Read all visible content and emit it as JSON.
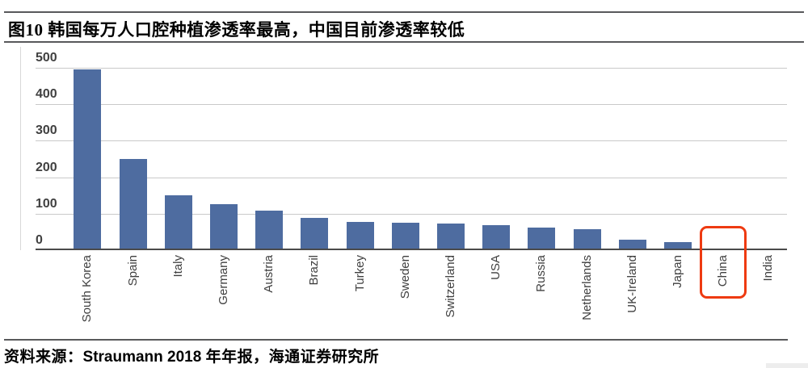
{
  "figure": {
    "title": "图10 韩国每万人口腔种植渗透率最高，中国目前渗透率较低",
    "source_prefix": "资料来源：",
    "source_latin": "Straumann 2018",
    "source_suffix": " 年年报，海通证券研究所"
  },
  "chart_data": {
    "type": "bar",
    "title": "图10 韩国每万人口腔种植渗透率最高，中国目前渗透率较低",
    "categories": [
      "South Korea",
      "Spain",
      "Italy",
      "Germany",
      "Austria",
      "Brazil",
      "Turkey",
      "Sweden",
      "Switzerland",
      "USA",
      "Russia",
      "Netherlands",
      "UK-Ireland",
      "Japan",
      "China",
      "India"
    ],
    "values": [
      495,
      250,
      150,
      125,
      108,
      88,
      78,
      76,
      72,
      69,
      63,
      57,
      29,
      23,
      5,
      2
    ],
    "xlabel": "",
    "ylabel": "",
    "ylim": [
      0,
      500
    ],
    "yticks": [
      0,
      100,
      200,
      300,
      400,
      500
    ],
    "grid": "horizontal",
    "legend": "none",
    "bar_color": "#4e6ca0",
    "grid_color": "#c9c9c9",
    "axis_line_color": "#4a4a4a",
    "tick_label_color": "#404040",
    "highlight": {
      "category": "China",
      "box_color": "#ee3a11"
    }
  }
}
